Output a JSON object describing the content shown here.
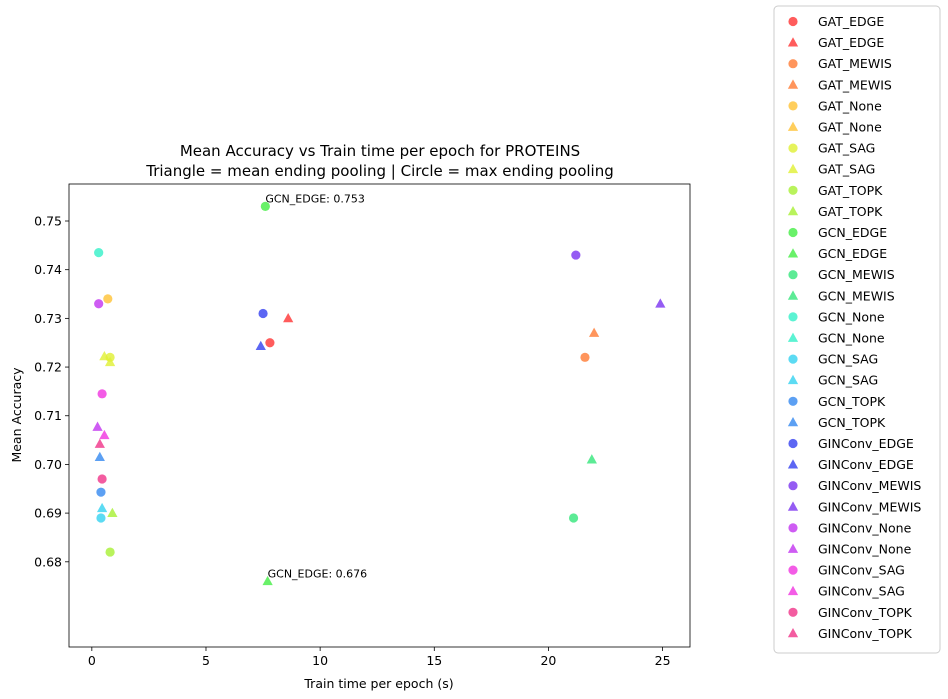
{
  "chart_data": {
    "type": "scatter",
    "title_line1": "Mean Accuracy vs Train time per epoch for PROTEINS",
    "title_line2": "Triangle = mean ending pooling | Circle = max ending pooling",
    "xlabel": "Train time per epoch (s)",
    "ylabel": "Mean Accuracy",
    "xlim": [
      -1.0,
      26.2
    ],
    "ylim": [
      0.6625,
      0.7576
    ],
    "xticks": [
      0,
      5,
      10,
      15,
      20,
      25
    ],
    "xtick_labels": [
      "0",
      "5",
      "10",
      "15",
      "20",
      "25"
    ],
    "yticks": [
      0.68,
      0.69,
      0.7,
      0.71,
      0.72,
      0.73,
      0.74,
      0.75
    ],
    "ytick_labels": [
      "0.68",
      "0.69",
      "0.70",
      "0.71",
      "0.72",
      "0.73",
      "0.74",
      "0.75"
    ],
    "grid": false,
    "legend_placement": "outside-right",
    "series": [
      {
        "name": "GAT_EDGE",
        "marker": "circle",
        "color": "#ff3333",
        "points": [
          [
            7.8,
            0.725
          ]
        ]
      },
      {
        "name": "GAT_EDGE",
        "marker": "triangle",
        "color": "#ff3333",
        "points": [
          [
            8.6,
            0.73
          ]
        ]
      },
      {
        "name": "GAT_MEWIS",
        "marker": "circle",
        "color": "#ff7a33",
        "points": [
          [
            21.6,
            0.722
          ]
        ]
      },
      {
        "name": "GAT_MEWIS",
        "marker": "triangle",
        "color": "#ff7a33",
        "points": [
          [
            22.0,
            0.727
          ]
        ]
      },
      {
        "name": "GAT_None",
        "marker": "circle",
        "color": "#ffc233",
        "points": [
          [
            0.7,
            0.734
          ]
        ]
      },
      {
        "name": "GAT_None",
        "marker": "triangle",
        "color": "#ffc233",
        "points": []
      },
      {
        "name": "GAT_SAG",
        "marker": "circle",
        "color": "#e0f033",
        "points": [
          [
            0.8,
            0.722
          ]
        ]
      },
      {
        "name": "GAT_SAG",
        "marker": "triangle",
        "color": "#e0f033",
        "points": [
          [
            0.55,
            0.7222
          ],
          [
            0.8,
            0.721
          ]
        ]
      },
      {
        "name": "GAT_TOPK",
        "marker": "circle",
        "color": "#a8f033",
        "points": [
          [
            0.8,
            0.682
          ]
        ]
      },
      {
        "name": "GAT_TOPK",
        "marker": "triangle",
        "color": "#a8f033",
        "points": [
          [
            0.9,
            0.69
          ]
        ]
      },
      {
        "name": "GCN_EDGE",
        "marker": "circle",
        "color": "#44ee44",
        "points": [
          [
            7.6,
            0.753
          ]
        ]
      },
      {
        "name": "GCN_EDGE",
        "marker": "triangle",
        "color": "#44ee44",
        "points": [
          [
            7.7,
            0.676
          ]
        ]
      },
      {
        "name": "GCN_MEWIS",
        "marker": "circle",
        "color": "#33e67a",
        "points": [
          [
            21.1,
            0.689
          ]
        ]
      },
      {
        "name": "GCN_MEWIS",
        "marker": "triangle",
        "color": "#33e67a",
        "points": [
          [
            21.9,
            0.701
          ]
        ]
      },
      {
        "name": "GCN_None",
        "marker": "circle",
        "color": "#33f0c8",
        "points": [
          [
            0.3,
            0.7435
          ]
        ]
      },
      {
        "name": "GCN_None",
        "marker": "triangle",
        "color": "#33f0c8",
        "points": []
      },
      {
        "name": "GCN_SAG",
        "marker": "circle",
        "color": "#33d2f0",
        "points": [
          [
            0.4,
            0.689
          ]
        ]
      },
      {
        "name": "GCN_SAG",
        "marker": "triangle",
        "color": "#33d2f0",
        "points": [
          [
            0.45,
            0.691
          ]
        ]
      },
      {
        "name": "GCN_TOPK",
        "marker": "circle",
        "color": "#3388f0",
        "points": [
          [
            0.4,
            0.6943
          ]
        ]
      },
      {
        "name": "GCN_TOPK",
        "marker": "triangle",
        "color": "#3388f0",
        "points": [
          [
            0.35,
            0.7015
          ]
        ]
      },
      {
        "name": "GINConv_EDGE",
        "marker": "circle",
        "color": "#3340f0",
        "points": [
          [
            7.5,
            0.731
          ]
        ]
      },
      {
        "name": "GINConv_EDGE",
        "marker": "triangle",
        "color": "#3340f0",
        "points": [
          [
            7.4,
            0.7243
          ]
        ]
      },
      {
        "name": "GINConv_MEWIS",
        "marker": "circle",
        "color": "#7a33f0",
        "points": [
          [
            21.2,
            0.743
          ]
        ]
      },
      {
        "name": "GINConv_MEWIS",
        "marker": "triangle",
        "color": "#7a33f0",
        "points": [
          [
            24.9,
            0.733
          ]
        ]
      },
      {
        "name": "GINConv_None",
        "marker": "circle",
        "color": "#c233f0",
        "points": [
          [
            0.3,
            0.733
          ]
        ]
      },
      {
        "name": "GINConv_None",
        "marker": "triangle",
        "color": "#c233f0",
        "points": [
          [
            0.25,
            0.7077
          ]
        ]
      },
      {
        "name": "GINConv_SAG",
        "marker": "circle",
        "color": "#f033e0",
        "points": [
          [
            0.45,
            0.7145
          ]
        ]
      },
      {
        "name": "GINConv_SAG",
        "marker": "triangle",
        "color": "#f033e0",
        "points": [
          [
            0.55,
            0.706
          ]
        ]
      },
      {
        "name": "GINConv_TOPK",
        "marker": "circle",
        "color": "#f03388",
        "points": [
          [
            0.45,
            0.697
          ]
        ]
      },
      {
        "name": "GINConv_TOPK",
        "marker": "triangle",
        "color": "#f03388",
        "points": [
          [
            0.35,
            0.7042
          ]
        ]
      }
    ],
    "annotations": [
      {
        "text": "GCN_EDGE: 0.753",
        "x": 7.6,
        "y": 0.753
      },
      {
        "text": "GCN_EDGE: 0.676",
        "x": 7.7,
        "y": 0.676
      }
    ]
  }
}
